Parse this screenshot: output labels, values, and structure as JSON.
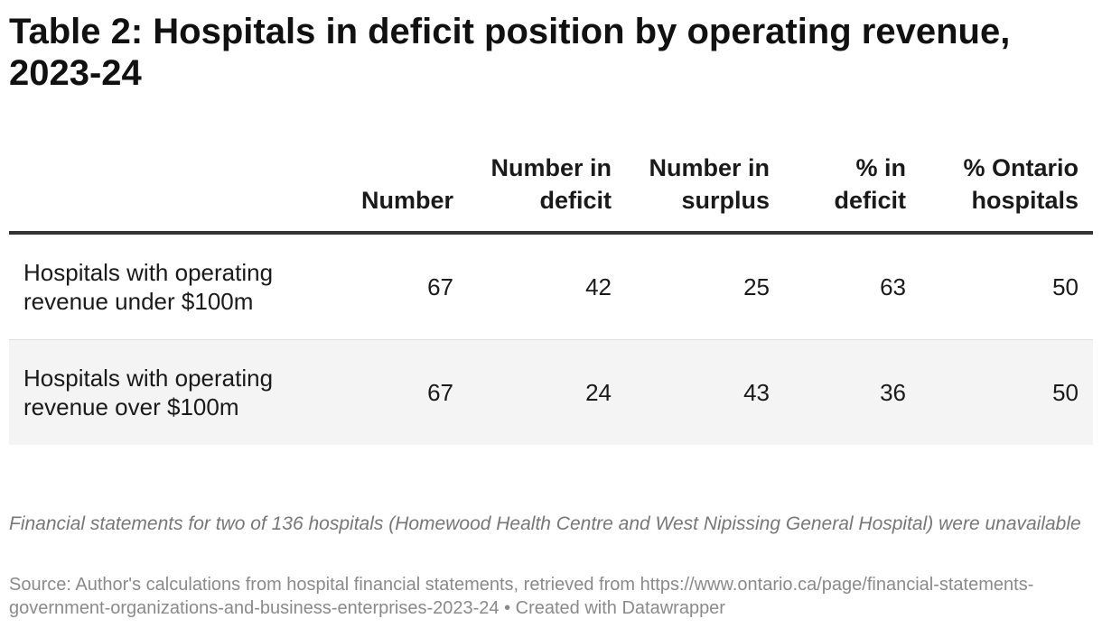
{
  "title": "Table 2: Hospitals in deficit position by operating revenue, 2023-24",
  "chart_data": {
    "type": "table",
    "title": "Table 2: Hospitals in deficit position by operating revenue, 2023-24",
    "columns": [
      "",
      "Number",
      "Number in deficit",
      "Number in surplus",
      "% in deficit",
      "% Ontario hospitals"
    ],
    "rows": [
      {
        "label": "Hospitals with operating revenue under $100m",
        "values": [
          "67",
          "42",
          "25",
          "63",
          "50"
        ]
      },
      {
        "label": "Hospitals with operating revenue over $100m",
        "values": [
          "67",
          "24",
          "43",
          "36",
          "50"
        ]
      }
    ]
  },
  "note": "Financial statements for two of 136 hospitals (Homewood Health Centre and West Nipissing General Hospital) were unavailable",
  "source": "Source: Author's calculations from hospital financial statements, retrieved from https://www.ontario.ca/page/financial-statements-government-organizations-and-business-enterprises-2023-24 • Created with Datawrapper"
}
